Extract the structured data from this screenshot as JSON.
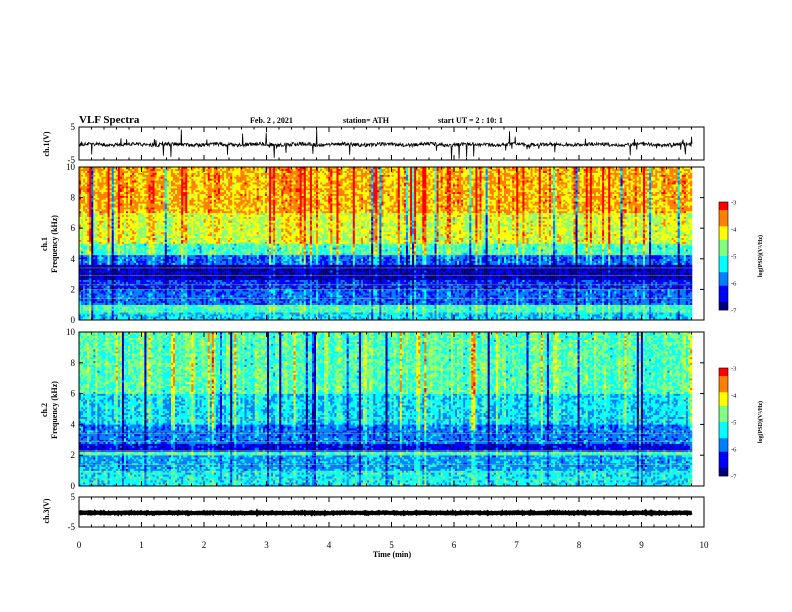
{
  "header": {
    "title": "VLF Spectra",
    "date": "Feb. 2 , 2021",
    "station": "station= ATH",
    "start": "start UT = 2 : 10: 1"
  },
  "colors": {
    "trace": "#000000",
    "spectrogram_scale": [
      "#00007f",
      "#0000ff",
      "#0080ff",
      "#00ffff",
      "#80ff80",
      "#ffff00",
      "#ff8000",
      "#ff0000",
      "#ff9090",
      "#ffffff"
    ]
  },
  "chart_data": [
    {
      "type": "line",
      "panel": "ch1-waveform",
      "ylabel": "ch.1(V)",
      "ylim": [
        -5,
        5
      ],
      "yticks": [
        "5",
        "-5"
      ],
      "xlim": [
        0,
        10
      ],
      "description_values": {
        "mean": -0.3,
        "typical_amplitude": 1.2
      }
    },
    {
      "type": "heatmap",
      "panel": "ch1-spectrogram",
      "ylabel": "ch.1",
      "ylabel2": "Frequency (kHz)",
      "ylim": [
        0,
        10
      ],
      "yticks": [
        "0",
        "2",
        "4",
        "6",
        "8",
        "10"
      ],
      "xlim": [
        0,
        10
      ],
      "colorbar": {
        "label": "log(PSD)(V²/Hz)",
        "range": [
          -7,
          -3
        ],
        "ticks": [
          "-3",
          "-4",
          "-5",
          "-6",
          "-7"
        ]
      },
      "bands_khz": [
        {
          "from": 0,
          "to": 0.5,
          "log_psd": -5.5
        },
        {
          "from": 0.5,
          "to": 1.0,
          "log_psd": -5.0
        },
        {
          "from": 1.0,
          "to": 2.0,
          "log_psd": -6.0
        },
        {
          "from": 2.0,
          "to": 2.6,
          "log_psd": -6.3
        },
        {
          "from": 2.6,
          "to": 3.6,
          "log_psd": -6.8
        },
        {
          "from": 3.6,
          "to": 4.2,
          "log_psd": -6.0
        },
        {
          "from": 4.2,
          "to": 5.0,
          "log_psd": -5.0
        },
        {
          "from": 5.0,
          "to": 7.0,
          "log_psd": -4.3
        },
        {
          "from": 7.0,
          "to": 10.0,
          "log_psd": -3.8
        }
      ]
    },
    {
      "type": "heatmap",
      "panel": "ch2-spectrogram",
      "ylabel": "ch.2",
      "ylabel2": "Frequency (kHz)",
      "ylim": [
        0,
        10
      ],
      "yticks": [
        "0",
        "2",
        "4",
        "6",
        "8",
        "10"
      ],
      "xlim": [
        0,
        10
      ],
      "colorbar": {
        "label": "log(PSD)(V²/Hz)",
        "range": [
          -7,
          -3
        ],
        "ticks": [
          "-3",
          "-4",
          "-5",
          "-6",
          "-7"
        ]
      },
      "bands_khz": [
        {
          "from": 0,
          "to": 1.0,
          "log_psd": -5.3
        },
        {
          "from": 1.0,
          "to": 2.0,
          "log_psd": -5.7
        },
        {
          "from": 2.0,
          "to": 2.3,
          "log_psd": -5.0
        },
        {
          "from": 2.3,
          "to": 2.8,
          "log_psd": -6.5
        },
        {
          "from": 2.8,
          "to": 4.0,
          "log_psd": -5.9
        },
        {
          "from": 4.0,
          "to": 6.0,
          "log_psd": -5.4
        },
        {
          "from": 6.0,
          "to": 10.0,
          "log_psd": -4.9
        }
      ]
    },
    {
      "type": "line",
      "panel": "ch3-waveform",
      "ylabel": "ch.3(V)",
      "ylim": [
        -5,
        5
      ],
      "yticks": [
        "5",
        "-5"
      ],
      "xlim": [
        0,
        10
      ],
      "xlabel": "Time (min)",
      "xticks": [
        "0",
        "1",
        "2",
        "3",
        "4",
        "5",
        "6",
        "7",
        "8",
        "9",
        "10"
      ],
      "description_values": {
        "mean": -0.3,
        "typical_amplitude": 0.3
      }
    }
  ]
}
